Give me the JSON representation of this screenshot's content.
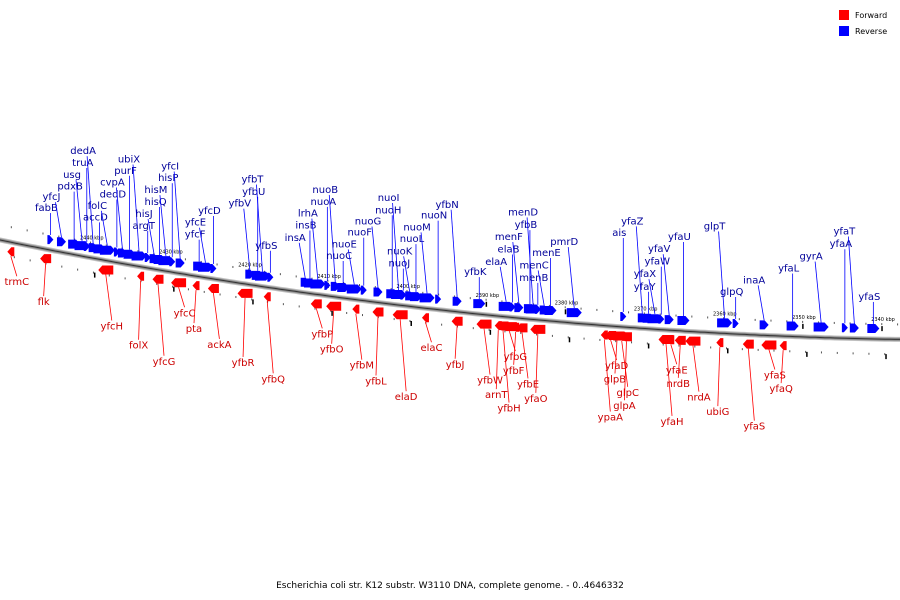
{
  "legend": {
    "forward": {
      "label": "Forward",
      "color": "#ff0000"
    },
    "reverse": {
      "label": "Reverse",
      "color": "#0000ff"
    }
  },
  "caption": "Escherichia coli str. K12 substr. W3110 DNA, complete genome. - 0..4646332",
  "axis": {
    "color": "#8c8c8c",
    "ticks": [
      {
        "label": "2440 kbp",
        "kbp": 2440
      },
      {
        "label": "2430 kbp",
        "kbp": 2430
      },
      {
        "label": "2420 kbp",
        "kbp": 2420
      },
      {
        "label": "2410 kbp",
        "kbp": 2410
      },
      {
        "label": "2400 kbp",
        "kbp": 2400
      },
      {
        "label": "2390 kbp",
        "kbp": 2390
      },
      {
        "label": "2380 kbp",
        "kbp": 2380
      },
      {
        "label": "2370 kbp",
        "kbp": 2370
      },
      {
        "label": "2360 kbp",
        "kbp": 2360
      },
      {
        "label": "2350 kbp",
        "kbp": 2350
      },
      {
        "label": "2340 kbp",
        "kbp": 2340
      }
    ]
  },
  "reverse_genes": [
    {
      "name": "fabB",
      "kbp": 2445.0
    },
    {
      "name": "yfcJ",
      "kbp": 2443.6
    },
    {
      "name": "pdxB",
      "kbp": 2442.0
    },
    {
      "name": "usg",
      "kbp": 2441.0
    },
    {
      "name": "truA",
      "kbp": 2440.4
    },
    {
      "name": "dedA",
      "kbp": 2439.6
    },
    {
      "name": "accD",
      "kbp": 2438.8
    },
    {
      "name": "folC",
      "kbp": 2437.8
    },
    {
      "name": "dedD",
      "kbp": 2436.6
    },
    {
      "name": "cvpA",
      "kbp": 2435.9
    },
    {
      "name": "purF",
      "kbp": 2435.0
    },
    {
      "name": "ubiX",
      "kbp": 2433.8
    },
    {
      "name": "argT",
      "kbp": 2432.7
    },
    {
      "name": "hisJ",
      "kbp": 2431.9
    },
    {
      "name": "hisQ",
      "kbp": 2431.2
    },
    {
      "name": "hisM",
      "kbp": 2430.4
    },
    {
      "name": "hisP",
      "kbp": 2429.6
    },
    {
      "name": "yfcI",
      "kbp": 2428.6
    },
    {
      "name": "yfcF",
      "kbp": 2426.2
    },
    {
      "name": "yfcE",
      "kbp": 2425.4
    },
    {
      "name": "yfcD",
      "kbp": 2424.4
    },
    {
      "name": "yfbV",
      "kbp": 2419.8
    },
    {
      "name": "yfbU",
      "kbp": 2418.8
    },
    {
      "name": "yfbT",
      "kbp": 2418.2
    },
    {
      "name": "yfbS",
      "kbp": 2417.2
    },
    {
      "name": "insA",
      "kbp": 2412.8
    },
    {
      "name": "insB",
      "kbp": 2412.2
    },
    {
      "name": "lrhA",
      "kbp": 2411.2
    },
    {
      "name": "nuoA",
      "kbp": 2410.0
    },
    {
      "name": "nuoB",
      "kbp": 2409.0
    },
    {
      "name": "nuoC",
      "kbp": 2408.0
    },
    {
      "name": "nuoE",
      "kbp": 2406.6
    },
    {
      "name": "nuoF",
      "kbp": 2405.4
    },
    {
      "name": "nuoG",
      "kbp": 2403.6
    },
    {
      "name": "nuoH",
      "kbp": 2401.8
    },
    {
      "name": "nuoI",
      "kbp": 2401.0
    },
    {
      "name": "nuoJ",
      "kbp": 2400.4
    },
    {
      "name": "nuoK",
      "kbp": 2399.6
    },
    {
      "name": "nuoL",
      "kbp": 2398.8
    },
    {
      "name": "nuoM",
      "kbp": 2397.4
    },
    {
      "name": "nuoN",
      "kbp": 2396.0
    },
    {
      "name": "yfbN",
      "kbp": 2393.6
    },
    {
      "name": "yfbK",
      "kbp": 2390.8
    },
    {
      "name": "elaA",
      "kbp": 2387.4
    },
    {
      "name": "elaB",
      "kbp": 2386.6
    },
    {
      "name": "menF",
      "kbp": 2385.8
    },
    {
      "name": "yfbB",
      "kbp": 2384.4
    },
    {
      "name": "menD",
      "kbp": 2384.0
    },
    {
      "name": "menB",
      "kbp": 2383.4
    },
    {
      "name": "menC",
      "kbp": 2382.6
    },
    {
      "name": "menE",
      "kbp": 2381.8
    },
    {
      "name": "pmrD",
      "kbp": 2378.8
    },
    {
      "name": "ais",
      "kbp": 2372.6
    },
    {
      "name": "yfaZ",
      "kbp": 2370.2
    },
    {
      "name": "yfaY",
      "kbp": 2369.4
    },
    {
      "name": "yfaX",
      "kbp": 2368.6
    },
    {
      "name": "yfaW",
      "kbp": 2367.8
    },
    {
      "name": "yfaV",
      "kbp": 2366.8
    },
    {
      "name": "yfaU",
      "kbp": 2365.0
    },
    {
      "name": "glpT",
      "kbp": 2359.8
    },
    {
      "name": "glpQ",
      "kbp": 2358.4
    },
    {
      "name": "inaA",
      "kbp": 2354.8
    },
    {
      "name": "yfaL",
      "kbp": 2351.2
    },
    {
      "name": "gyrA",
      "kbp": 2347.6
    },
    {
      "name": "yfaA",
      "kbp": 2344.6
    },
    {
      "name": "yfaT",
      "kbp": 2343.4
    },
    {
      "name": "yfaS",
      "kbp": 2341.0
    }
  ],
  "forward_genes": [
    {
      "name": "trmC",
      "kbp": 2450.0
    },
    {
      "name": "flk",
      "kbp": 2445.6
    },
    {
      "name": "yfcH",
      "kbp": 2438.0
    },
    {
      "name": "folX",
      "kbp": 2433.6
    },
    {
      "name": "yfcG",
      "kbp": 2431.4
    },
    {
      "name": "yfcC",
      "kbp": 2428.8
    },
    {
      "name": "pta",
      "kbp": 2426.6
    },
    {
      "name": "ackA",
      "kbp": 2424.4
    },
    {
      "name": "yfbR",
      "kbp": 2420.4
    },
    {
      "name": "yfbQ",
      "kbp": 2417.6
    },
    {
      "name": "yfbP",
      "kbp": 2411.4
    },
    {
      "name": "yfbO",
      "kbp": 2409.2
    },
    {
      "name": "yfbM",
      "kbp": 2406.4
    },
    {
      "name": "yfbL",
      "kbp": 2403.6
    },
    {
      "name": "elaD",
      "kbp": 2400.8
    },
    {
      "name": "elaC",
      "kbp": 2397.6
    },
    {
      "name": "yfbJ",
      "kbp": 2393.6
    },
    {
      "name": "yfbW",
      "kbp": 2390.2
    },
    {
      "name": "arnT",
      "kbp": 2388.4
    },
    {
      "name": "yfbH",
      "kbp": 2387.8
    },
    {
      "name": "yfbG",
      "kbp": 2387.0
    },
    {
      "name": "yfbF",
      "kbp": 2386.2
    },
    {
      "name": "yfbE",
      "kbp": 2385.4
    },
    {
      "name": "yfaO",
      "kbp": 2383.4
    },
    {
      "name": "ypaA",
      "kbp": 2375.0
    },
    {
      "name": "yfaD",
      "kbp": 2374.2
    },
    {
      "name": "glpB",
      "kbp": 2373.4
    },
    {
      "name": "glpC",
      "kbp": 2372.8
    },
    {
      "name": "glpA",
      "kbp": 2372.2
    },
    {
      "name": "yfaH",
      "kbp": 2367.2
    },
    {
      "name": "yfaE",
      "kbp": 2366.6
    },
    {
      "name": "nrdB",
      "kbp": 2365.4
    },
    {
      "name": "nrdA",
      "kbp": 2363.8
    },
    {
      "name": "ubiG",
      "kbp": 2360.4
    },
    {
      "name": "yfaS",
      "kbp": 2356.8
    },
    {
      "name": "yfaS",
      "kbp": 2354.2
    },
    {
      "name": "yfaQ",
      "kbp": 2352.4
    }
  ]
}
